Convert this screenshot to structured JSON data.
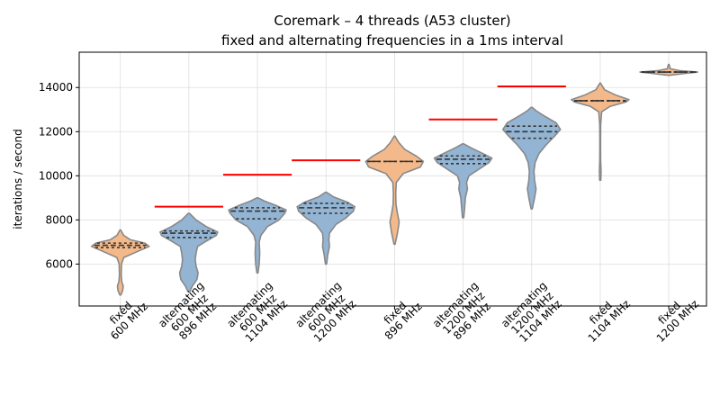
{
  "chart_data": {
    "type": "violin",
    "title_line1": "Coremark – 4 threads (A53 cluster)",
    "title_line2": "fixed and alternating frequencies in a 1ms interval",
    "xlabel": "",
    "ylabel": "iterations / second",
    "ylim": [
      4100,
      15600
    ],
    "yticks": [
      6000,
      8000,
      10000,
      12000,
      14000
    ],
    "grid": true,
    "colors": {
      "fixed": "#f4b98a",
      "alternating": "#93b4d3",
      "expected": "#ff0000"
    },
    "categories": [
      {
        "label": "fixed\n600 MHz",
        "kind": "fixed",
        "min": 4600,
        "max": 7550,
        "median": 6850,
        "q1": 6750,
        "q3": 6950,
        "expected": null,
        "profile": [
          [
            4600,
            0.02
          ],
          [
            4800,
            0.08
          ],
          [
            5000,
            0.1
          ],
          [
            5200,
            0.05
          ],
          [
            5500,
            0.03
          ],
          [
            6000,
            0.04
          ],
          [
            6300,
            0.12
          ],
          [
            6600,
            0.65
          ],
          [
            6800,
            1.0
          ],
          [
            6950,
            0.85
          ],
          [
            7100,
            0.35
          ],
          [
            7300,
            0.12
          ],
          [
            7550,
            0.01
          ]
        ]
      },
      {
        "label": "alternating\n600 MHz\n896 MHz",
        "kind": "alternating",
        "min": 4750,
        "max": 8300,
        "median": 7400,
        "q1": 7200,
        "q3": 7500,
        "expected": 8600,
        "profile": [
          [
            4750,
            0.03
          ],
          [
            5000,
            0.12
          ],
          [
            5300,
            0.28
          ],
          [
            5600,
            0.32
          ],
          [
            5900,
            0.25
          ],
          [
            6200,
            0.22
          ],
          [
            6500,
            0.25
          ],
          [
            6800,
            0.3
          ],
          [
            7000,
            0.55
          ],
          [
            7300,
            0.95
          ],
          [
            7450,
            1.0
          ],
          [
            7700,
            0.6
          ],
          [
            8000,
            0.25
          ],
          [
            8300,
            0.02
          ]
        ]
      },
      {
        "label": "alternating\n600 MHz\n1104 MHz",
        "kind": "alternating",
        "min": 5600,
        "max": 9000,
        "median": 8400,
        "q1": 8050,
        "q3": 8550,
        "expected": 10050,
        "profile": [
          [
            5600,
            0.02
          ],
          [
            6000,
            0.06
          ],
          [
            6500,
            0.08
          ],
          [
            7000,
            0.06
          ],
          [
            7300,
            0.12
          ],
          [
            7700,
            0.35
          ],
          [
            8000,
            0.75
          ],
          [
            8300,
            0.95
          ],
          [
            8450,
            1.0
          ],
          [
            8650,
            0.65
          ],
          [
            8850,
            0.25
          ],
          [
            9000,
            0.02
          ]
        ]
      },
      {
        "label": "alternating\n600 MHz\n1200 MHz",
        "kind": "alternating",
        "min": 6000,
        "max": 9250,
        "median": 8550,
        "q1": 8300,
        "q3": 8750,
        "expected": 10700,
        "profile": [
          [
            6000,
            0.02
          ],
          [
            6400,
            0.06
          ],
          [
            6800,
            0.12
          ],
          [
            7100,
            0.1
          ],
          [
            7400,
            0.12
          ],
          [
            7800,
            0.35
          ],
          [
            8100,
            0.7
          ],
          [
            8400,
            0.95
          ],
          [
            8600,
            1.0
          ],
          [
            8800,
            0.75
          ],
          [
            9050,
            0.25
          ],
          [
            9250,
            0.02
          ]
        ]
      },
      {
        "label": "fixed\n896 MHz",
        "kind": "fixed",
        "min": 6900,
        "max": 11800,
        "median": 10650,
        "q1": 10650,
        "q3": 10650,
        "expected": null,
        "profile": [
          [
            6900,
            0.02
          ],
          [
            7400,
            0.1
          ],
          [
            7900,
            0.16
          ],
          [
            8300,
            0.1
          ],
          [
            8700,
            0.05
          ],
          [
            9200,
            0.04
          ],
          [
            9700,
            0.06
          ],
          [
            10100,
            0.3
          ],
          [
            10400,
            0.9
          ],
          [
            10650,
            1.0
          ],
          [
            10900,
            0.75
          ],
          [
            11200,
            0.35
          ],
          [
            11500,
            0.15
          ],
          [
            11800,
            0.01
          ]
        ]
      },
      {
        "label": "alternating\n1200 MHz\n896 MHz",
        "kind": "alternating",
        "min": 8100,
        "max": 11450,
        "median": 10750,
        "q1": 10550,
        "q3": 10900,
        "expected": 12550,
        "profile": [
          [
            8100,
            0.02
          ],
          [
            8500,
            0.05
          ],
          [
            9000,
            0.08
          ],
          [
            9400,
            0.15
          ],
          [
            9700,
            0.12
          ],
          [
            10000,
            0.2
          ],
          [
            10300,
            0.55
          ],
          [
            10600,
            0.9
          ],
          [
            10800,
            1.0
          ],
          [
            11000,
            0.7
          ],
          [
            11250,
            0.3
          ],
          [
            11450,
            0.02
          ]
        ]
      },
      {
        "label": "alternating\n1200 MHz\n1104 MHz",
        "kind": "alternating",
        "min": 8500,
        "max": 13100,
        "median": 12000,
        "q1": 11700,
        "q3": 12250,
        "expected": 14050,
        "profile": [
          [
            8500,
            0.02
          ],
          [
            9000,
            0.1
          ],
          [
            9400,
            0.15
          ],
          [
            9800,
            0.1
          ],
          [
            10200,
            0.08
          ],
          [
            10600,
            0.12
          ],
          [
            11000,
            0.25
          ],
          [
            11400,
            0.5
          ],
          [
            11800,
            0.8
          ],
          [
            12100,
            1.0
          ],
          [
            12400,
            0.85
          ],
          [
            12700,
            0.45
          ],
          [
            12950,
            0.15
          ],
          [
            13100,
            0.02
          ]
        ]
      },
      {
        "label": "fixed\n1104 MHz",
        "kind": "fixed",
        "min": 9800,
        "max": 14200,
        "median": 13400,
        "q1": 13400,
        "q3": 13400,
        "expected": null,
        "profile": [
          [
            9800,
            0.02
          ],
          [
            10200,
            0.03
          ],
          [
            10700,
            0.015
          ],
          [
            11500,
            0.012
          ],
          [
            12300,
            0.015
          ],
          [
            12900,
            0.05
          ],
          [
            13150,
            0.35
          ],
          [
            13350,
            0.9
          ],
          [
            13450,
            1.0
          ],
          [
            13650,
            0.55
          ],
          [
            13900,
            0.15
          ],
          [
            14200,
            0.01
          ]
        ]
      },
      {
        "label": "fixed\n1200 MHz",
        "kind": "fixed",
        "min": 14550,
        "max": 15050,
        "median": 14700,
        "q1": 14700,
        "q3": 14700,
        "expected": null,
        "profile": [
          [
            14550,
            0.01
          ],
          [
            14640,
            0.6
          ],
          [
            14700,
            1.0
          ],
          [
            14760,
            0.4
          ],
          [
            14850,
            0.05
          ],
          [
            14950,
            0.03
          ],
          [
            15050,
            0.01
          ]
        ]
      }
    ]
  }
}
